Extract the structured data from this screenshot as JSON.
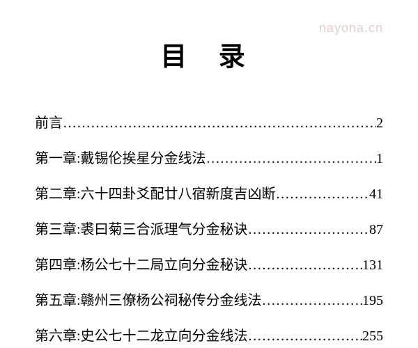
{
  "watermark": "nayona.cn",
  "title": "目 录",
  "colors": {
    "background": "#ffffff",
    "text": "#000000",
    "watermark": "#e8cccc"
  },
  "typography": {
    "title_fontsize": 38,
    "entry_fontsize": 20,
    "font_family": "SimSun"
  },
  "leader_char": "…",
  "entries": [
    {
      "label": "前言",
      "page": "2"
    },
    {
      "label": "第一章:戴锡伦挨星分金线法",
      "page": "1"
    },
    {
      "label": "第二章:六十四卦爻配廿八宿新度吉凶断",
      "page": "41"
    },
    {
      "label": "第三章:裘曰菊三合派理气分金秘诀",
      "page": "87"
    },
    {
      "label": "第四章:杨公七十二局立向分金秘诀",
      "page": "131"
    },
    {
      "label": "第五章:赣州三僚杨公祠秘传分金线法",
      "page": "195"
    },
    {
      "label": "第六章:史公七十二龙立向分金线法",
      "page": "255"
    }
  ]
}
